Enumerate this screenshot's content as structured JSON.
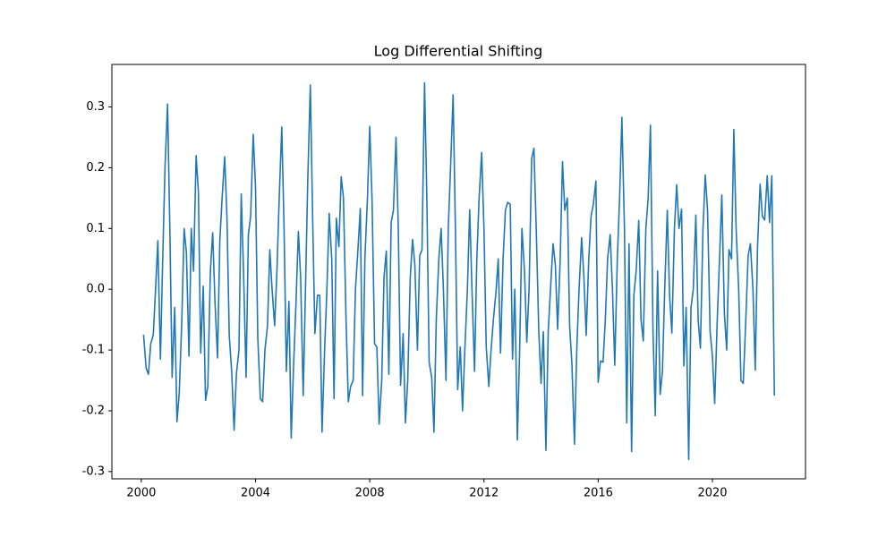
{
  "chart_data": {
    "type": "line",
    "title": "Log Differential Shifting",
    "x": [
      2000.08,
      2000.17,
      2000.25,
      2000.33,
      2000.42,
      2000.5,
      2000.58,
      2000.67,
      2000.75,
      2000.83,
      2000.92,
      2001,
      2001.08,
      2001.17,
      2001.25,
      2001.33,
      2001.42,
      2001.5,
      2001.58,
      2001.67,
      2001.75,
      2001.83,
      2001.92,
      2002,
      2002.08,
      2002.17,
      2002.25,
      2002.33,
      2002.42,
      2002.5,
      2002.58,
      2002.67,
      2002.75,
      2002.83,
      2002.92,
      2003,
      2003.08,
      2003.17,
      2003.25,
      2003.33,
      2003.42,
      2003.5,
      2003.58,
      2003.67,
      2003.75,
      2003.83,
      2003.92,
      2004,
      2004.08,
      2004.17,
      2004.25,
      2004.33,
      2004.42,
      2004.5,
      2004.58,
      2004.67,
      2004.75,
      2004.83,
      2004.92,
      2005,
      2005.08,
      2005.17,
      2005.25,
      2005.33,
      2005.42,
      2005.5,
      2005.58,
      2005.67,
      2005.75,
      2005.83,
      2005.92,
      2006,
      2006.08,
      2006.17,
      2006.25,
      2006.33,
      2006.42,
      2006.5,
      2006.58,
      2006.67,
      2006.75,
      2006.83,
      2006.92,
      2007,
      2007.08,
      2007.17,
      2007.25,
      2007.33,
      2007.42,
      2007.5,
      2007.58,
      2007.67,
      2007.75,
      2007.83,
      2007.92,
      2008,
      2008.08,
      2008.17,
      2008.25,
      2008.33,
      2008.42,
      2008.5,
      2008.58,
      2008.67,
      2008.75,
      2008.83,
      2008.92,
      2009,
      2009.08,
      2009.17,
      2009.25,
      2009.33,
      2009.42,
      2009.5,
      2009.58,
      2009.67,
      2009.75,
      2009.83,
      2009.92,
      2010,
      2010.08,
      2010.17,
      2010.25,
      2010.33,
      2010.42,
      2010.5,
      2010.58,
      2010.67,
      2010.75,
      2010.83,
      2010.92,
      2011,
      2011.08,
      2011.17,
      2011.25,
      2011.33,
      2011.42,
      2011.5,
      2011.58,
      2011.67,
      2011.75,
      2011.83,
      2011.92,
      2012,
      2012.08,
      2012.17,
      2012.25,
      2012.33,
      2012.42,
      2012.5,
      2012.58,
      2012.67,
      2012.75,
      2012.83,
      2012.92,
      2013,
      2013.08,
      2013.17,
      2013.25,
      2013.33,
      2013.42,
      2013.5,
      2013.58,
      2013.67,
      2013.75,
      2013.83,
      2013.92,
      2014,
      2014.08,
      2014.17,
      2014.25,
      2014.33,
      2014.42,
      2014.5,
      2014.58,
      2014.67,
      2014.75,
      2014.83,
      2014.92,
      2015,
      2015.08,
      2015.17,
      2015.25,
      2015.33,
      2015.42,
      2015.5,
      2015.58,
      2015.67,
      2015.75,
      2015.83,
      2015.92,
      2016,
      2016.08,
      2016.17,
      2016.25,
      2016.33,
      2016.42,
      2016.5,
      2016.58,
      2016.67,
      2016.75,
      2016.83,
      2016.92,
      2017,
      2017.08,
      2017.17,
      2017.25,
      2017.33,
      2017.42,
      2017.5,
      2017.58,
      2017.67,
      2017.75,
      2017.83,
      2017.92,
      2018,
      2018.08,
      2018.17,
      2018.25,
      2018.33,
      2018.42,
      2018.5,
      2018.58,
      2018.67,
      2018.75,
      2018.83,
      2018.92,
      2019,
      2019.08,
      2019.17,
      2019.25,
      2019.33,
      2019.42,
      2019.5,
      2019.58,
      2019.67,
      2019.75,
      2019.83,
      2019.92,
      2020,
      2020.08,
      2020.17,
      2020.25,
      2020.33,
      2020.42,
      2020.5,
      2020.58,
      2020.67,
      2020.75,
      2020.83,
      2020.92,
      2021,
      2021.08,
      2021.17,
      2021.25,
      2021.33,
      2021.42,
      2021.5,
      2021.58,
      2021.67,
      2021.75,
      2021.83,
      2021.92,
      2022,
      2022.08,
      2022.17
    ],
    "series": [
      {
        "color": "#1f77b4",
        "values": [
          -0.075,
          -0.13,
          -0.14,
          -0.09,
          -0.075,
          0.0,
          0.08,
          -0.115,
          0.05,
          0.2,
          0.305,
          0.1,
          -0.145,
          -0.03,
          -0.218,
          -0.17,
          -0.05,
          0.1,
          0.06,
          -0.11,
          0.1,
          0.03,
          0.22,
          0.16,
          -0.105,
          0.005,
          -0.183,
          -0.16,
          0.03,
          0.093,
          -0.02,
          -0.113,
          0.08,
          0.15,
          0.218,
          0.12,
          -0.075,
          -0.14,
          -0.232,
          -0.14,
          -0.1,
          0.157,
          0.03,
          -0.145,
          0.09,
          0.12,
          0.255,
          0.17,
          -0.08,
          -0.18,
          -0.185,
          -0.1,
          -0.06,
          0.065,
          0.0,
          -0.06,
          0.03,
          0.15,
          0.267,
          0.1,
          -0.135,
          -0.02,
          -0.245,
          -0.13,
          -0.02,
          0.095,
          0.02,
          -0.175,
          0.0,
          0.18,
          0.336,
          0.12,
          -0.073,
          -0.01,
          -0.01,
          -0.235,
          -0.1,
          0.0,
          0.125,
          0.05,
          -0.18,
          0.117,
          0.07,
          0.185,
          0.15,
          -0.05,
          -0.185,
          -0.16,
          -0.15,
          0.0,
          0.06,
          0.133,
          -0.175,
          0.05,
          0.15,
          0.268,
          0.15,
          -0.09,
          -0.095,
          -0.222,
          -0.15,
          0.02,
          0.063,
          -0.14,
          0.11,
          0.13,
          0.25,
          0.1,
          -0.158,
          -0.073,
          -0.22,
          -0.15,
          0.02,
          0.082,
          0.04,
          -0.1,
          0.055,
          0.065,
          0.34,
          0.15,
          -0.12,
          -0.145,
          -0.235,
          -0.05,
          0.05,
          0.1,
          0.0,
          -0.15,
          0.1,
          0.2,
          0.32,
          0.1,
          -0.165,
          -0.095,
          -0.2,
          -0.1,
          0.0,
          0.131,
          0.0,
          -0.135,
          0.05,
          0.15,
          0.225,
          0.1,
          -0.095,
          -0.16,
          -0.1,
          -0.05,
          -0.005,
          0.05,
          -0.105,
          0.05,
          0.13,
          0.143,
          0.14,
          -0.115,
          0.0,
          -0.248,
          -0.1,
          0.1,
          0.03,
          -0.087,
          0.0,
          0.215,
          0.232,
          0.1,
          -0.07,
          -0.155,
          -0.07,
          -0.265,
          -0.07,
          0.0,
          0.075,
          0.04,
          -0.066,
          0.05,
          0.21,
          0.13,
          0.15,
          -0.06,
          -0.123,
          -0.255,
          -0.1,
          0.0,
          0.085,
          0.02,
          -0.076,
          0.05,
          0.12,
          0.14,
          0.178,
          -0.153,
          -0.118,
          -0.12,
          -0.05,
          0.05,
          0.09,
          0.0,
          -0.125,
          0.05,
          0.15,
          0.283,
          0.1,
          -0.22,
          0.075,
          -0.267,
          -0.01,
          0.03,
          0.113,
          -0.05,
          -0.085,
          0.1,
          0.15,
          0.27,
          -0.07,
          -0.208,
          0.03,
          -0.173,
          -0.135,
          0.0,
          0.13,
          -0.01,
          -0.072,
          0.1,
          0.172,
          0.1,
          0.132,
          -0.126,
          -0.03,
          -0.28,
          -0.03,
          0.0,
          0.122,
          -0.05,
          -0.097,
          0.1,
          0.188,
          0.13,
          -0.07,
          -0.11,
          -0.188,
          -0.05,
          0.05,
          0.155,
          -0.04,
          -0.1,
          0.065,
          0.05,
          0.263,
          0.1,
          0.0,
          -0.15,
          -0.155,
          -0.05,
          0.055,
          0.075,
          0.0,
          -0.133,
          0.07,
          0.173,
          0.12,
          0.114,
          0.187,
          0.11,
          0.187,
          -0.175
        ]
      }
    ],
    "xlim": [
      1998.97,
      2023.26
    ],
    "xticks": [
      2000,
      2004,
      2008,
      2012,
      2016,
      2020
    ],
    "ylim": [
      -0.312,
      0.37
    ],
    "yticks": [
      -0.3,
      -0.2,
      -0.1,
      0.0,
      0.1,
      0.2,
      0.3
    ],
    "grid": false
  }
}
